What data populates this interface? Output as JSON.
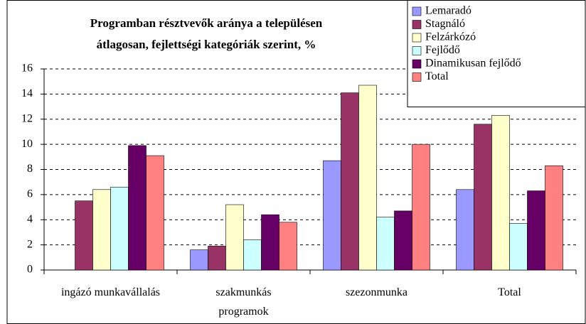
{
  "chart_data": {
    "type": "bar",
    "title": "Programban résztvevők aránya a településen\nátlagosan, fejlettségi kategóriák szerint, %",
    "categories": [
      "ingázó munkavállalás",
      "szakmunkás\nprogramok",
      "szezonmunka",
      "Total"
    ],
    "series": [
      {
        "name": "Lemaradó",
        "color": "#9999ff",
        "values": [
          0,
          1.6,
          8.7,
          6.4
        ]
      },
      {
        "name": "Stagnáló",
        "color": "#993366",
        "values": [
          5.5,
          1.9,
          14.1,
          11.6
        ]
      },
      {
        "name": "Felzárkózó",
        "color": "#ffffcc",
        "values": [
          6.4,
          5.2,
          14.7,
          12.3
        ]
      },
      {
        "name": "Fejlődő",
        "color": "#ccffff",
        "values": [
          6.6,
          2.4,
          4.2,
          3.7
        ]
      },
      {
        "name": "Dinamikusan fejlődő",
        "color": "#660066",
        "values": [
          9.9,
          4.4,
          4.7,
          6.3
        ]
      },
      {
        "name": "Total",
        "color": "#ff8080",
        "values": [
          9.1,
          3.8,
          10.0,
          8.3
        ]
      }
    ],
    "ylim": [
      0,
      16
    ],
    "yticks": [
      0,
      2,
      4,
      6,
      8,
      10,
      12,
      14,
      16
    ],
    "grid": true,
    "legend": "top-right"
  }
}
